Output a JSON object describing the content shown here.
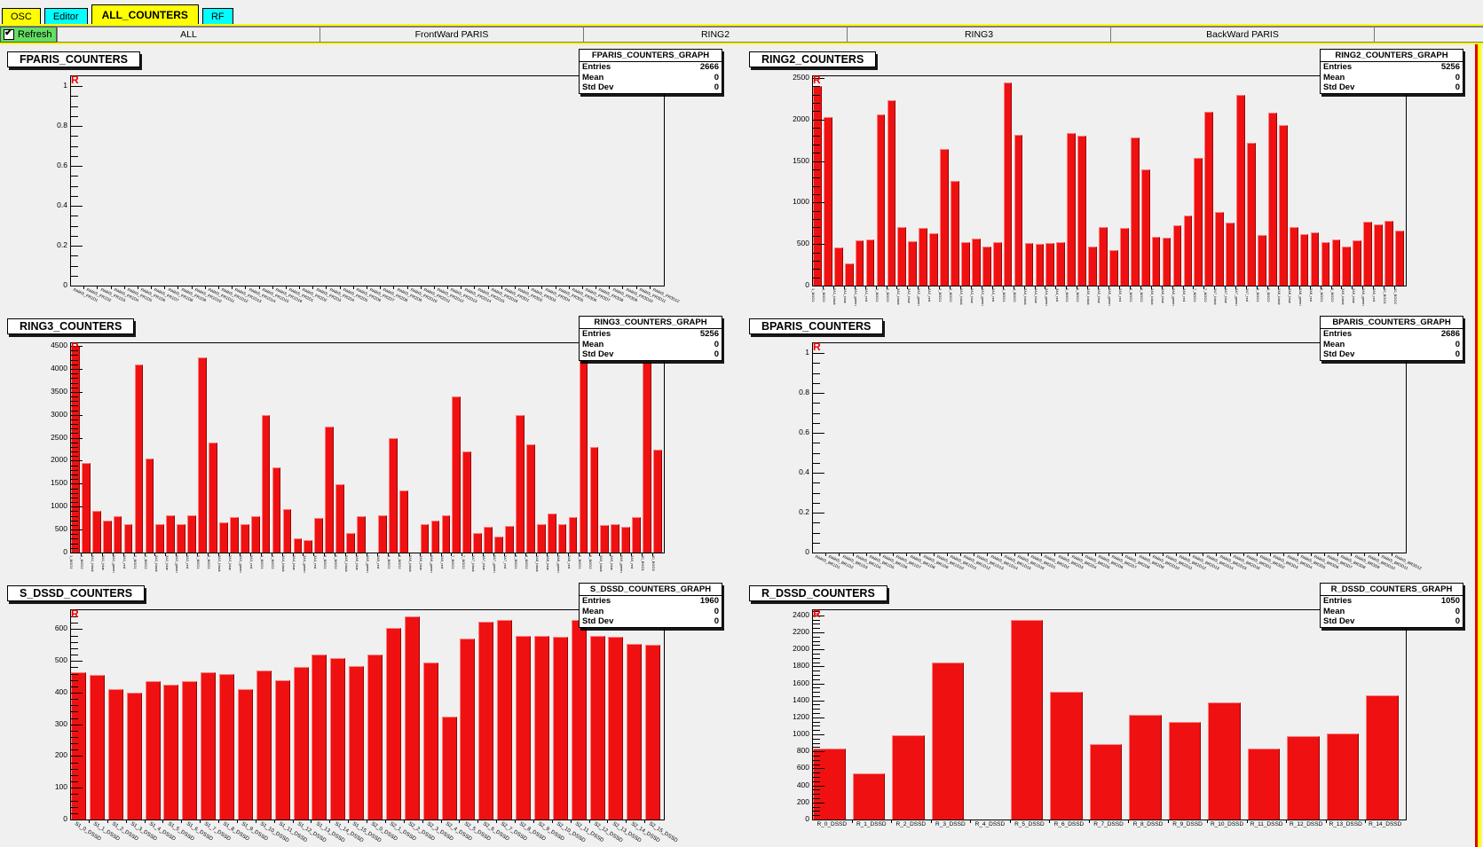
{
  "top_tabs": [
    {
      "label": "OSC",
      "color": "#ffff00",
      "active": false
    },
    {
      "label": "Editor",
      "color": "#00ffff",
      "active": false
    },
    {
      "label": "ALL_COUNTERS",
      "color": "#ffff00",
      "active": true
    },
    {
      "label": "RF",
      "color": "#00ffff",
      "active": false
    }
  ],
  "toolbar": {
    "refresh_label": "Refresh",
    "refresh_checked": "✔",
    "view_tabs": [
      "ALL",
      "FrontWard PARIS",
      "RING2",
      "RING3",
      "BackWard PARIS"
    ]
  },
  "stats_labels": {
    "entries": "Entries",
    "mean": "Mean",
    "std_dev": "Std Dev"
  },
  "colors": {
    "bar": "#ef1111",
    "pad_bg": "#f0f0f0",
    "tab_yellow": "#ffff00",
    "tab_cyan": "#00ffff",
    "refresh_green": "#63df63",
    "edge_red": "#dd0000",
    "edge_yellow": "#ffff00",
    "corner_mark_red": "#ee0000"
  },
  "ring_xlabels": [
    "1_BGO1",
    "1_BGO2",
    "3A1_black",
    "3A1_blue",
    "3A1_green",
    "3A1_red",
    "2_BGO1",
    "2_BGO2",
    "3A2_black",
    "3A2_blue",
    "3A2_green",
    "3A2_red",
    "3_BGO1",
    "3_BGO2",
    "3A3_black",
    "3A3_blue",
    "3A3_green",
    "3A3_red",
    "4_BGO1",
    "4_BGO2",
    "3A4_black",
    "3A4_blue",
    "3A4_green",
    "3A4_red",
    "5_BGO1",
    "5_BGO2",
    "3A5_black",
    "3A5_blue",
    "3A5_green",
    "3A5_red",
    "6_BGO1",
    "6_BGO2",
    "3A6_black",
    "3A6_blue",
    "3A6_green",
    "3A6_red",
    "7_BGO1",
    "7_BGO2",
    "3A7_black",
    "3A7_blue",
    "3A7_green",
    "3A7_red",
    "8_BGO1",
    "8_BGO2",
    "3A8_black",
    "3A8_blue",
    "3A8_green",
    "3A8_red",
    "9_BGO1",
    "9_BGO2",
    "3A9_black",
    "3A9_blue",
    "3A9_green",
    "3A9_red",
    "10_BGO1",
    "10_BGO2"
  ],
  "panels": [
    {
      "name": "FPARIS_COUNTERS",
      "corner_mark": "R",
      "stats": {
        "title": "FPARIS_COUNTERS_GRAPH",
        "entries": "2666",
        "mean": "0",
        "std_dev": "0"
      },
      "type": "bar",
      "ymax": 1.05,
      "yminor": 0.05,
      "yticks": [
        {
          "v": 1,
          "t": "1"
        },
        {
          "v": 0.8,
          "t": "0.8"
        },
        {
          "v": 0.6,
          "t": "0.6"
        },
        {
          "v": 0.4,
          "t": "0.4"
        },
        {
          "v": 0.2,
          "t": "0.2"
        },
        {
          "v": 0,
          "t": "0"
        }
      ],
      "values": [],
      "xlabels": [
        "PARIS_FR1D1",
        "PARIS_FR1D2",
        "PARIS_FR1D3",
        "PARIS_FR1D4",
        "PARIS_FR1D5",
        "PARIS_FR1D6",
        "PARIS_FR1D7",
        "PARIS_FR1D8",
        "PARIS_FR1D9",
        "PARIS_FR1D10",
        "PARIS_FR1D11",
        "PARIS_FR1D12",
        "PARIS_FR1D13",
        "PARIS_FR1D14",
        "PARIS_FR1D15",
        "PARIS_FR1D16",
        "PARIS_FR2D1",
        "PARIS_FR2D2",
        "PARIS_FR2D3",
        "PARIS_FR2D4",
        "PARIS_FR2D5",
        "PARIS_FR2D6",
        "PARIS_FR2D7",
        "PARIS_FR2D8",
        "PARIS_FR2D9",
        "PARIS_FR2D10",
        "PARIS_FR2D11",
        "PARIS_FR2D12",
        "PARIS_FR2D13",
        "PARIS_FR2D14",
        "PARIS_FR2D15",
        "PARIS_FR2D16",
        "PARIS_FR3D1",
        "PARIS_FR3D2",
        "PARIS_FR3D3",
        "PARIS_FR3D4",
        "PARIS_FR3D5",
        "PARIS_FR3D6",
        "PARIS_FR3D7",
        "PARIS_FR3D8",
        "PARIS_FR3D9",
        "PARIS_FR3D10",
        "PARIS_FR3D11",
        "PARIS_FR3D12"
      ],
      "label_style": "slant-sm"
    },
    {
      "name": "RING2_COUNTERS",
      "corner_mark": "R",
      "stats": {
        "title": "RING2_COUNTERS_GRAPH",
        "entries": "5256",
        "mean": "0",
        "std_dev": "0"
      },
      "type": "bar",
      "ymax": 2520,
      "yminor": 100,
      "yticks": [
        {
          "v": 2500,
          "t": "2500"
        },
        {
          "v": 2000,
          "t": "2000"
        },
        {
          "v": 1500,
          "t": "1500"
        },
        {
          "v": 1000,
          "t": "1000"
        },
        {
          "v": 500,
          "t": "500"
        },
        {
          "v": 0,
          "t": "0"
        }
      ],
      "values": [
        2400,
        2025,
        460,
        270,
        550,
        560,
        2060,
        2230,
        710,
        530,
        690,
        625,
        1640,
        1260,
        520,
        570,
        470,
        520,
        2450,
        1820,
        510,
        500,
        510,
        520,
        1840,
        1800,
        470,
        700,
        430,
        690,
        1780,
        1395,
        590,
        580,
        730,
        840,
        1540,
        2090,
        890,
        760,
        2300,
        1720,
        610,
        2080,
        1930,
        700,
        620,
        640,
        520,
        560,
        470,
        550,
        770,
        740,
        780,
        660
      ],
      "xlabels_key": "ring_xlabels",
      "label_style": "vertical"
    },
    {
      "name": "RING3_COUNTERS",
      "corner_mark": "R",
      "stats": {
        "title": "RING3_COUNTERS_GRAPH",
        "entries": "5256",
        "mean": "0",
        "std_dev": "0"
      },
      "type": "bar",
      "ymax": 4560,
      "yminor": 100,
      "yticks": [
        {
          "v": 4500,
          "t": "4500"
        },
        {
          "v": 4000,
          "t": "4000"
        },
        {
          "v": 3500,
          "t": "3500"
        },
        {
          "v": 3000,
          "t": "3000"
        },
        {
          "v": 2500,
          "t": "2500"
        },
        {
          "v": 2000,
          "t": "2000"
        },
        {
          "v": 1500,
          "t": "1500"
        },
        {
          "v": 1000,
          "t": "1000"
        },
        {
          "v": 500,
          "t": "500"
        },
        {
          "v": 0,
          "t": "0"
        }
      ],
      "values": [
        4500,
        1950,
        900,
        700,
        800,
        620,
        4100,
        2050,
        620,
        820,
        620,
        820,
        4250,
        2400,
        650,
        780,
        620,
        800,
        3000,
        1850,
        950,
        300,
        280,
        750,
        2750,
        1480,
        430,
        800,
        0,
        820,
        2500,
        1350,
        0,
        620,
        700,
        820,
        3400,
        2200,
        420,
        560,
        350,
        580,
        3000,
        2350,
        620,
        850,
        620,
        780,
        4350,
        2300,
        600,
        620,
        560,
        780,
        4150,
        2250
      ],
      "xlabels_key": "ring_xlabels",
      "label_style": "vertical"
    },
    {
      "name": "BPARIS_COUNTERS",
      "corner_mark": "R",
      "stats": {
        "title": "BPARIS_COUNTERS_GRAPH",
        "entries": "2686",
        "mean": "0",
        "std_dev": "0"
      },
      "type": "bar",
      "ymax": 1.05,
      "yminor": 0.05,
      "yticks": [
        {
          "v": 1,
          "t": "1"
        },
        {
          "v": 0.8,
          "t": "0.8"
        },
        {
          "v": 0.6,
          "t": "0.6"
        },
        {
          "v": 0.4,
          "t": "0.4"
        },
        {
          "v": 0.2,
          "t": "0.2"
        },
        {
          "v": 0,
          "t": "0"
        }
      ],
      "values": [],
      "xlabels": [
        "PARIS_BR1D1",
        "PARIS_BR1D2",
        "PARIS_BR1D3",
        "PARIS_BR1D4",
        "PARIS_BR1D5",
        "PARIS_BR1D6",
        "PARIS_BR1D7",
        "PARIS_BR1D8",
        "PARIS_BR1D9",
        "PARIS_BR1D10",
        "PARIS_BR1D11",
        "PARIS_BR1D12",
        "PARIS_BR1D13",
        "PARIS_BR1D14",
        "PARIS_BR1D15",
        "PARIS_BR1D16",
        "PARIS_BR2D1",
        "PARIS_BR2D2",
        "PARIS_BR2D3",
        "PARIS_BR2D4",
        "PARIS_BR2D5",
        "PARIS_BR2D6",
        "PARIS_BR2D7",
        "PARIS_BR2D8",
        "PARIS_BR2D9",
        "PARIS_BR2D10",
        "PARIS_BR2D11",
        "PARIS_BR2D12",
        "PARIS_BR2D13",
        "PARIS_BR2D14",
        "PARIS_BR2D15",
        "PARIS_BR2D16",
        "PARIS_BR3D1",
        "PARIS_BR3D2",
        "PARIS_BR3D3",
        "PARIS_BR3D4",
        "PARIS_BR3D5",
        "PARIS_BR3D6",
        "PARIS_BR3D7",
        "PARIS_BR3D8",
        "PARIS_BR3D9",
        "PARIS_BR3D10",
        "PARIS_BR3D11",
        "PARIS_BR3D12"
      ],
      "label_style": "slant-sm"
    },
    {
      "name": "S_DSSD_COUNTERS",
      "corner_mark": "R",
      "stats": {
        "title": "S_DSSD_COUNTERS_GRAPH",
        "entries": "1960",
        "mean": "0",
        "std_dev": "0"
      },
      "type": "bar",
      "ymax": 660,
      "yminor": 20,
      "yticks": [
        {
          "v": 600,
          "t": "600"
        },
        {
          "v": 500,
          "t": "500"
        },
        {
          "v": 400,
          "t": "400"
        },
        {
          "v": 300,
          "t": "300"
        },
        {
          "v": 200,
          "t": "200"
        },
        {
          "v": 100,
          "t": "100"
        },
        {
          "v": 0,
          "t": "0"
        }
      ],
      "values": [
        465,
        455,
        410,
        400,
        435,
        425,
        435,
        465,
        460,
        410,
        470,
        440,
        480,
        520,
        510,
        485,
        520,
        605,
        640,
        495,
        325,
        570,
        625,
        630,
        580,
        580,
        575,
        628,
        580,
        575,
        555,
        550
      ],
      "xlabels": [
        "S1_0_DSSD",
        "S1_1_DSSD",
        "S1_2_DSSD",
        "S1_3_DSSD",
        "S1_4_DSSD",
        "S1_5_DSSD",
        "S1_6_DSSD",
        "S1_7_DSSD",
        "S1_8_DSSD",
        "S1_9_DSSD",
        "S1_10_DSSD",
        "S1_11_DSSD",
        "S1_12_DSSD",
        "S1_13_DSSD",
        "S1_14_DSSD",
        "S1_15_DSSD",
        "S2_0_DSSD",
        "S2_1_DSSD",
        "S2_2_DSSD",
        "S2_3_DSSD",
        "S2_4_DSSD",
        "S2_5_DSSD",
        "S2_6_DSSD",
        "S2_7_DSSD",
        "S2_8_DSSD",
        "S2_9_DSSD",
        "S2_10_DSSD",
        "S2_11_DSSD",
        "S2_12_DSSD",
        "S2_13_DSSD",
        "S2_14_DSSD",
        "S2_15_DSSD"
      ],
      "label_style": "slant"
    },
    {
      "name": "R_DSSD_COUNTERS",
      "corner_mark": "R",
      "stats": {
        "title": "R_DSSD_COUNTERS_GRAPH",
        "entries": "1050",
        "mean": "0",
        "std_dev": "0"
      },
      "type": "bar",
      "ymax": 2460,
      "yminor": 50,
      "yticks": [
        {
          "v": 2400,
          "t": "2400"
        },
        {
          "v": 2200,
          "t": "2200"
        },
        {
          "v": 2000,
          "t": "2000"
        },
        {
          "v": 1800,
          "t": "1800"
        },
        {
          "v": 1600,
          "t": "1600"
        },
        {
          "v": 1400,
          "t": "1400"
        },
        {
          "v": 1200,
          "t": "1200"
        },
        {
          "v": 1000,
          "t": "1000"
        },
        {
          "v": 800,
          "t": "800"
        },
        {
          "v": 600,
          "t": "600"
        },
        {
          "v": 400,
          "t": "400"
        },
        {
          "v": 200,
          "t": "200"
        },
        {
          "v": 0,
          "t": "0"
        }
      ],
      "values": [
        830,
        545,
        990,
        1845,
        0,
        2350,
        1505,
        890,
        1230,
        1150,
        1375,
        830,
        985,
        1010,
        1455
      ],
      "xlabels": [
        "R_0_DSSD",
        "R_1_DSSD",
        "R_2_DSSD",
        "R_3_DSSD",
        "R_4_DSSD",
        "R_5_DSSD",
        "R_6_DSSD",
        "R_7_DSSD",
        "R_8_DSSD",
        "R_9_DSSD",
        "R_10_DSSD",
        "R_11_DSSD",
        "R_12_DSSD",
        "R_13_DSSD",
        "R_14_DSSD"
      ],
      "label_style": "horizontal"
    }
  ]
}
